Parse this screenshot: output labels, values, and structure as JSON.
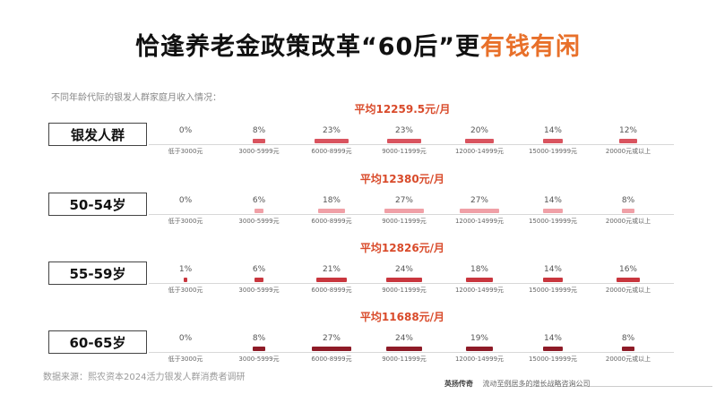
{
  "title_main": "恰逢养老金政策改革“60后”更",
  "title_accent": "有钱有闲",
  "subtitle": "不同年龄代际的银发人群家庭月收入情况：",
  "source": "数据来源：熙农资本2024活力银发人群消费者调研",
  "footer": {
    "brand": "英扬传奇",
    "tagline": "流动至例居多的增长战略咨询公司"
  },
  "chart_data": {
    "type": "bar",
    "categories": [
      "低于3000元",
      "3000-5999元",
      "6000-8999元",
      "9000-11999元",
      "12000-14999元",
      "15000-19999元",
      "20000元或以上"
    ],
    "ylim": [
      0,
      27
    ],
    "groups": [
      {
        "label": "银发人群",
        "average": "平均12259.5元/月",
        "color": "#d9545f",
        "values": [
          0,
          8,
          23,
          23,
          20,
          14,
          12
        ],
        "labels": [
          "0%",
          "8%",
          "23%",
          "23%",
          "20%",
          "14%",
          "12%"
        ]
      },
      {
        "label": "50-54岁",
        "average": "平均12380元/月",
        "color": "#f0a0a7",
        "values": [
          0,
          6,
          18,
          27,
          27,
          14,
          8
        ],
        "labels": [
          "0%",
          "6%",
          "18%",
          "27%",
          "27%",
          "14%",
          "8%"
        ]
      },
      {
        "label": "55-59岁",
        "average": "平均12826元/月",
        "color": "#c9363e",
        "values": [
          1,
          6,
          21,
          24,
          18,
          14,
          16
        ],
        "labels": [
          "1%",
          "6%",
          "21%",
          "24%",
          "18%",
          "14%",
          "16%"
        ]
      },
      {
        "label": "60-65岁",
        "average": "平均11688元/月",
        "color": "#8e1b27",
        "values": [
          0,
          8,
          27,
          24,
          19,
          14,
          8
        ],
        "labels": [
          "0%",
          "8%",
          "27%",
          "24%",
          "19%",
          "14%",
          "8%"
        ]
      }
    ]
  }
}
